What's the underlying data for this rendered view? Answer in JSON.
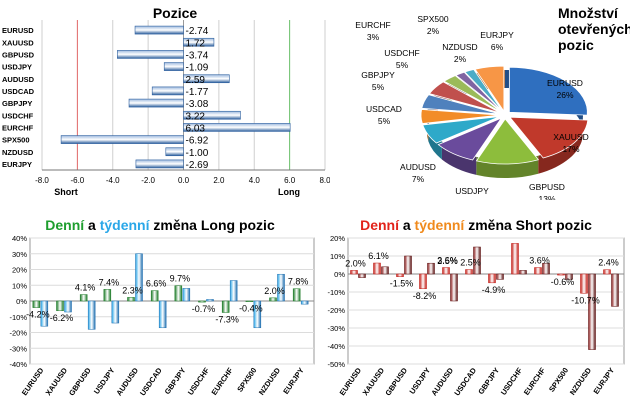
{
  "colors": {
    "long_green": "#1e9e2e",
    "weekly_blue": "#2aa7e8",
    "short_red": "#e2231a",
    "weekly_orange": "#f08a1c",
    "bar_blue": "#3a6fb6",
    "grid_red": "#e06666",
    "grid_green": "#6abf69",
    "dark_red": "#8b1a1a"
  },
  "chart_data": [
    {
      "type": "bar",
      "orientation": "horizontal",
      "title": "Pozice",
      "categories": [
        "EURUSD",
        "XAUUSD",
        "GBPUSD",
        "USDJPY",
        "AUDUSD",
        "USDCAD",
        "GBPJPY",
        "USDCHF",
        "EURCHF",
        "SPX500",
        "NZDUSD",
        "EURJPY"
      ],
      "values": [
        -2.74,
        1.72,
        -3.74,
        -1.09,
        2.59,
        -1.77,
        -3.08,
        3.22,
        6.03,
        -6.92,
        -1.0,
        -2.69
      ],
      "value_labels": [
        "-2.74",
        "1.72",
        "-3.74",
        "-1.09",
        "2.59",
        "-1.77",
        "-3.08",
        "3.22",
        "6.03",
        "-6.92",
        "-1.00",
        "-2.69"
      ],
      "xlim": [
        -8,
        8
      ],
      "xticks": [
        "-8.0",
        "-6.0",
        "-4.0",
        "-2.0",
        "0.0",
        "2.0",
        "4.0",
        "6.0",
        "8.0"
      ],
      "xlabel_left": "Short",
      "xlabel_right": "Long"
    },
    {
      "type": "pie",
      "title_lines": [
        "Množství",
        "otevřených",
        "pozic"
      ],
      "slices": [
        {
          "label": "EURUSD",
          "value": 26,
          "text": "26%",
          "color": "#2f6fbf"
        },
        {
          "label": "XAUUSD",
          "value": 17,
          "text": "17%",
          "color": "#c0392b"
        },
        {
          "label": "GBPUSD",
          "value": 13,
          "text": "13%",
          "color": "#8dbd3c"
        },
        {
          "label": "USDJPY",
          "value": 9,
          "text": "9%",
          "color": "#6a4b9c"
        },
        {
          "label": "AUDUSD",
          "value": 7,
          "text": "7%",
          "color": "#2ea9c9"
        },
        {
          "label": "USDCAD",
          "value": 5,
          "text": "5%",
          "color": "#f28c28"
        },
        {
          "label": "GBPJPY",
          "value": 5,
          "text": "5%",
          "color": "#4f81bd"
        },
        {
          "label": "USDCHF",
          "value": 5,
          "text": "5%",
          "color": "#c0504d"
        },
        {
          "label": "EURCHF",
          "value": 3,
          "text": "3%",
          "color": "#9bbb59"
        },
        {
          "label": "SPX500",
          "value": 2,
          "text": "2%",
          "color": "#8064a2"
        },
        {
          "label": "NZDUSD",
          "value": 2,
          "text": "2%",
          "color": "#4bacc6"
        },
        {
          "label": "EURJPY",
          "value": 6,
          "text": "6%",
          "color": "#f79646"
        }
      ]
    },
    {
      "type": "bar",
      "title_parts": [
        "Denní",
        " a ",
        "týdenní",
        " změna Long pozic"
      ],
      "categories": [
        "EURUSD",
        "XAUUSD",
        "GBPUSD",
        "USDJPY",
        "AUDUSD",
        "USDCAD",
        "GBPJPY",
        "USDCHF",
        "EURCHF",
        "SPX500",
        "NZDUSD",
        "EURJPY"
      ],
      "series": [
        {
          "name": "Denní",
          "values": [
            -4.2,
            -6.2,
            4.1,
            7.4,
            2.3,
            6.6,
            9.7,
            -0.7,
            -7.3,
            -0.4,
            2.0,
            7.8
          ]
        },
        {
          "name": "Týdenní",
          "values": [
            -16,
            -7,
            -18,
            -14,
            30,
            -17,
            8,
            1,
            13,
            -17,
            17,
            -2
          ]
        }
      ],
      "labels": [
        "-4.2%",
        "-6.2%",
        "4.1%",
        "7.4%",
        "2.3%",
        "6.6%",
        "9.7%",
        "-0.7%",
        "-7.3%",
        "-0.4%",
        "2.0%",
        "7.8%"
      ],
      "ylim": [
        -40,
        40
      ],
      "yticks": [
        "-40%",
        "-30%",
        "-20%",
        "-10%",
        "0%",
        "10%",
        "20%",
        "30%",
        "40%"
      ]
    },
    {
      "type": "bar",
      "title_parts": [
        "Denní",
        " a ",
        "týdenní",
        " změna Short pozic"
      ],
      "categories": [
        "EURUSD",
        "XAUUSD",
        "GBPUSD",
        "USDJPY",
        "AUDUSD",
        "USDCAD",
        "GBPJPY",
        "USDCHF",
        "EURCHF",
        "SPX500",
        "NZDUSD",
        "EURJPY"
      ],
      "series": [
        {
          "name": "Denní",
          "values": [
            2.0,
            6.1,
            -1.5,
            -8.2,
            3.6,
            2.5,
            -4.9,
            17,
            3.6,
            -0.6,
            -10.7,
            2.4
          ]
        },
        {
          "name": "Týdenní",
          "values": [
            -2,
            4,
            10,
            6,
            -15,
            15,
            -3,
            2,
            6,
            -3,
            -42,
            -18
          ]
        }
      ],
      "labels": [
        "2.0%",
        "6.1%",
        "-1.5%",
        "-8.2%",
        "3.6%",
        "2.5%",
        "-4.9%",
        "",
        "3.6%",
        "-0.6%",
        "-10.7%",
        "2.4%"
      ],
      "label_extra": {
        "index": 4,
        "text": "2.5%"
      },
      "ylim": [
        -50,
        20
      ],
      "yticks": [
        "-50%",
        "-40%",
        "-30%",
        "-20%",
        "-10%",
        "0%",
        "10%",
        "20%"
      ]
    }
  ]
}
